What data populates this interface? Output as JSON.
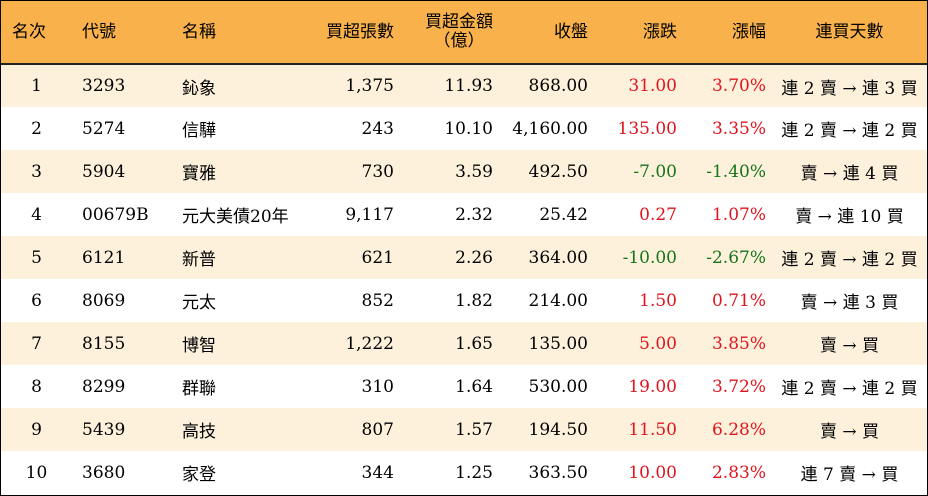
{
  "header": {
    "rank": "名次",
    "code": "代號",
    "name": "名稱",
    "net_buy_lots": "買超張數",
    "net_buy_amount_line1": "買超金額",
    "net_buy_amount_line2": "（億）",
    "close": "收盤",
    "change": "漲跌",
    "change_pct": "漲幅",
    "streak": "連買天數"
  },
  "colors": {
    "header_bg": "#f9b14c",
    "row_alt_bg": "#fdf1dc",
    "up": "#e0141e",
    "down": "#16741a"
  },
  "rows": [
    {
      "rank": "1",
      "code": "3293",
      "name": "鈊象",
      "lots": "1,375",
      "amount": "11.93",
      "close": "868.00",
      "change": "31.00",
      "pct": "3.70%",
      "streak": "連 2 賣 → 連 3 買",
      "dir": "up"
    },
    {
      "rank": "2",
      "code": "5274",
      "name": "信驊",
      "lots": "243",
      "amount": "10.10",
      "close": "4,160.00",
      "change": "135.00",
      "pct": "3.35%",
      "streak": "連 2 賣 → 連 2 買",
      "dir": "up"
    },
    {
      "rank": "3",
      "code": "5904",
      "name": "寶雅",
      "lots": "730",
      "amount": "3.59",
      "close": "492.50",
      "change": "-7.00",
      "pct": "-1.40%",
      "streak": "賣 → 連 4 買",
      "dir": "down"
    },
    {
      "rank": "4",
      "code": "00679B",
      "name": "元大美債20年",
      "lots": "9,117",
      "amount": "2.32",
      "close": "25.42",
      "change": "0.27",
      "pct": "1.07%",
      "streak": "賣 → 連 10 買",
      "dir": "up"
    },
    {
      "rank": "5",
      "code": "6121",
      "name": "新普",
      "lots": "621",
      "amount": "2.26",
      "close": "364.00",
      "change": "-10.00",
      "pct": "-2.67%",
      "streak": "連 2 賣 → 連 2 買",
      "dir": "down"
    },
    {
      "rank": "6",
      "code": "8069",
      "name": "元太",
      "lots": "852",
      "amount": "1.82",
      "close": "214.00",
      "change": "1.50",
      "pct": "0.71%",
      "streak": "賣 → 連 3 買",
      "dir": "up"
    },
    {
      "rank": "7",
      "code": "8155",
      "name": "博智",
      "lots": "1,222",
      "amount": "1.65",
      "close": "135.00",
      "change": "5.00",
      "pct": "3.85%",
      "streak": "賣 → 買",
      "dir": "up"
    },
    {
      "rank": "8",
      "code": "8299",
      "name": "群聯",
      "lots": "310",
      "amount": "1.64",
      "close": "530.00",
      "change": "19.00",
      "pct": "3.72%",
      "streak": "連 2 賣 → 連 2 買",
      "dir": "up"
    },
    {
      "rank": "9",
      "code": "5439",
      "name": "高技",
      "lots": "807",
      "amount": "1.57",
      "close": "194.50",
      "change": "11.50",
      "pct": "6.28%",
      "streak": "賣 → 買",
      "dir": "up"
    },
    {
      "rank": "10",
      "code": "3680",
      "name": "家登",
      "lots": "344",
      "amount": "1.25",
      "close": "363.50",
      "change": "10.00",
      "pct": "2.83%",
      "streak": "連 7 賣 → 買",
      "dir": "up"
    }
  ]
}
